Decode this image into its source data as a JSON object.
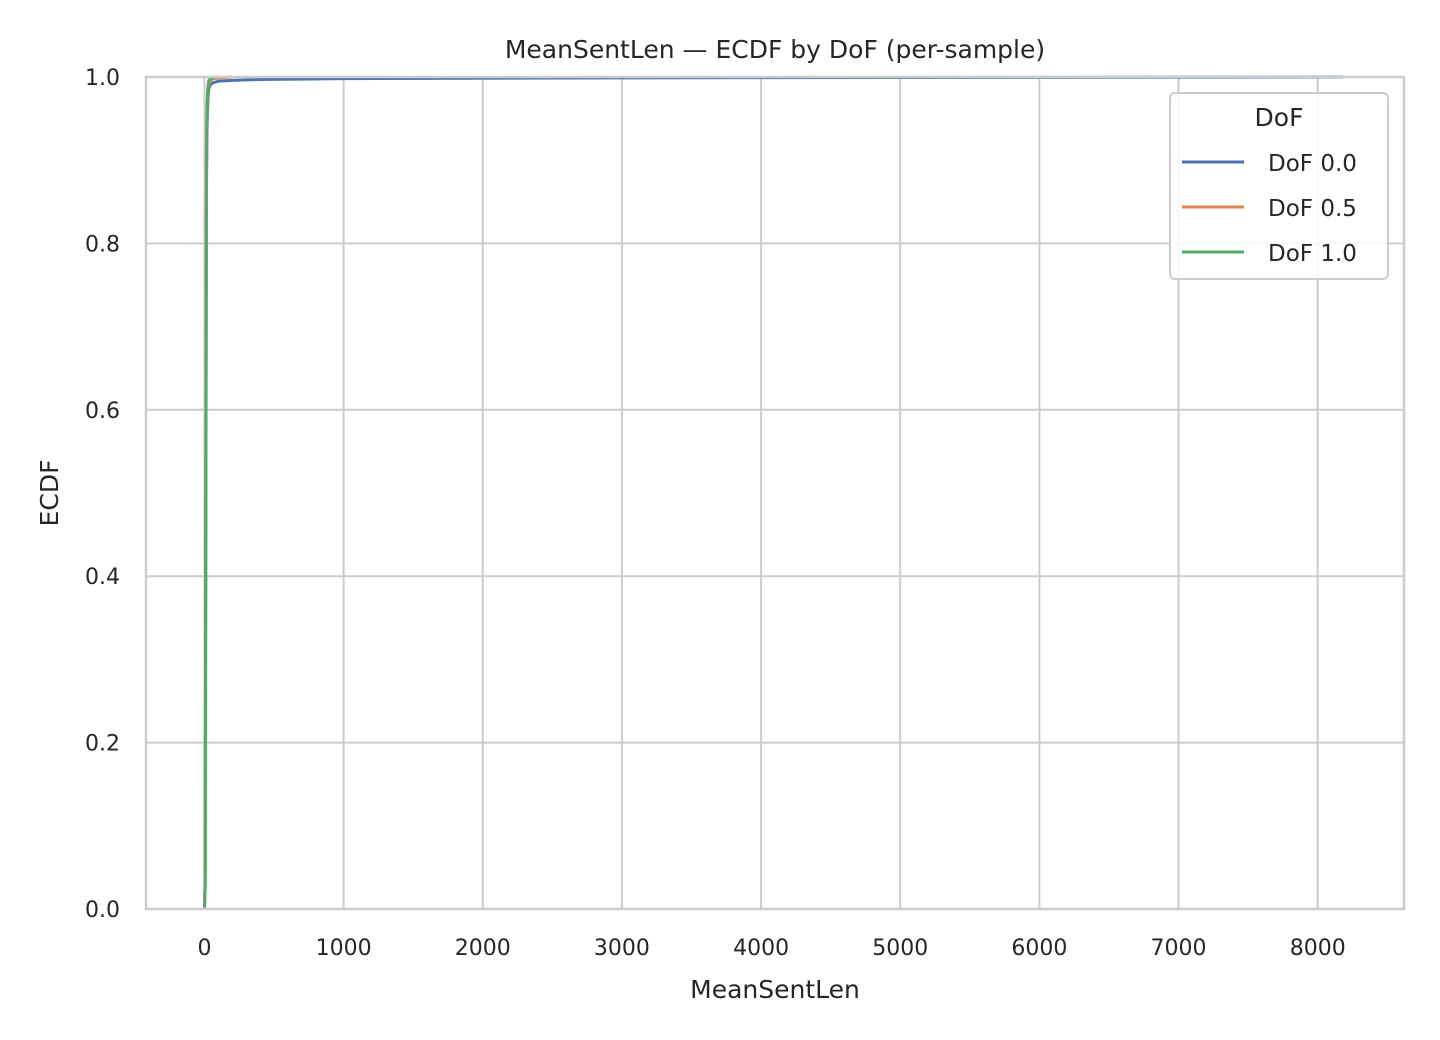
{
  "chart_data": {
    "type": "line",
    "subtype": "ecdf",
    "title": "MeanSentLen — ECDF by DoF (per-sample)",
    "xlabel": "MeanSentLen",
    "ylabel": "ECDF",
    "xlim": [
      -420,
      8620
    ],
    "ylim": [
      0.0,
      1.0
    ],
    "xticks": [
      0,
      1000,
      2000,
      3000,
      4000,
      5000,
      6000,
      7000,
      8000
    ],
    "xtick_labels": [
      "0",
      "1000",
      "2000",
      "3000",
      "4000",
      "5000",
      "6000",
      "7000",
      "8000"
    ],
    "yticks": [
      0.0,
      0.2,
      0.4,
      0.6,
      0.8,
      1.0
    ],
    "ytick_labels": [
      "0.0",
      "0.2",
      "0.4",
      "0.6",
      "0.8",
      "1.0"
    ],
    "grid": true,
    "legend": {
      "title": "DoF",
      "placement": "top-right"
    },
    "series": [
      {
        "name": "DoF 0.0",
        "color": "#4c72b0",
        "x": [
          0,
          5,
          10,
          14,
          18,
          22,
          26,
          30,
          40,
          60,
          100,
          200,
          400,
          1000,
          3000,
          8180
        ],
        "y": [
          0.0,
          0.03,
          0.45,
          0.85,
          0.93,
          0.96,
          0.975,
          0.985,
          0.99,
          0.993,
          0.995,
          0.996,
          0.997,
          0.998,
          0.999,
          1.0
        ]
      },
      {
        "name": "DoF 0.5",
        "color": "#dd8452",
        "x": [
          0,
          5,
          10,
          14,
          18,
          22,
          26,
          30,
          40,
          60,
          100,
          200
        ],
        "y": [
          0.0,
          0.03,
          0.5,
          0.88,
          0.95,
          0.975,
          0.985,
          0.99,
          0.995,
          0.998,
          0.999,
          1.0
        ]
      },
      {
        "name": "DoF 1.0",
        "color": "#55a868",
        "x": [
          0,
          5,
          10,
          14,
          18,
          22,
          26,
          30,
          40,
          60,
          90
        ],
        "y": [
          0.0,
          0.03,
          0.52,
          0.9,
          0.96,
          0.98,
          0.99,
          0.995,
          0.998,
          0.999,
          1.0
        ]
      }
    ]
  }
}
